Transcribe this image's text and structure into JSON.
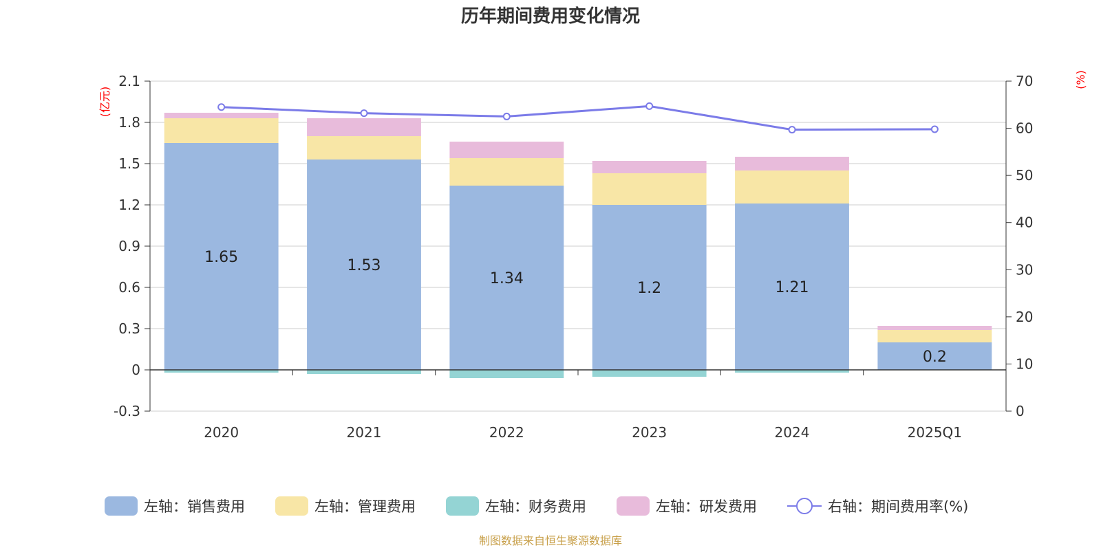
{
  "chart_data": {
    "type": "bar",
    "title": "历年期间费用变化情况",
    "left_unit": "(亿元)",
    "right_unit": "(%)",
    "categories": [
      "2020",
      "2021",
      "2022",
      "2023",
      "2024",
      "2025Q1"
    ],
    "left_axis": {
      "ylim": [
        -0.3,
        2.1
      ],
      "ticks": [
        "-0.3",
        "0",
        "0.3",
        "0.6",
        "0.9",
        "1.2",
        "1.5",
        "1.8",
        "2.1"
      ]
    },
    "right_axis": {
      "ylim": [
        0,
        70
      ],
      "ticks": [
        "0",
        "10",
        "20",
        "30",
        "40",
        "50",
        "60",
        "70"
      ]
    },
    "grid": true,
    "legend_position": "bottom",
    "stacked": true,
    "series": [
      {
        "name": "左轴：销售费用",
        "axis": "left",
        "type": "bar",
        "color": "#9bb8e0",
        "values": [
          1.65,
          1.53,
          1.34,
          1.2,
          1.21,
          0.2
        ],
        "labels": [
          "1.65",
          "1.53",
          "1.34",
          "1.2",
          "1.21",
          "0.2"
        ]
      },
      {
        "name": "左轴：管理费用",
        "axis": "left",
        "type": "bar",
        "color": "#f8e6a6",
        "values": [
          0.18,
          0.17,
          0.2,
          0.23,
          0.24,
          0.09
        ]
      },
      {
        "name": "左轴：财务费用",
        "axis": "left",
        "type": "bar",
        "color": "#94d4d4",
        "values": [
          -0.02,
          -0.03,
          -0.06,
          -0.05,
          -0.02,
          0.0
        ]
      },
      {
        "name": "左轴：研发费用",
        "axis": "left",
        "type": "bar",
        "color": "#e8bbdb",
        "values": [
          0.04,
          0.13,
          0.12,
          0.09,
          0.1,
          0.03
        ]
      },
      {
        "name": "右轴：期间费用率(%)",
        "axis": "right",
        "type": "line",
        "color": "#7b7be8",
        "values": [
          64.5,
          63.2,
          62.5,
          64.7,
          59.7,
          59.8
        ]
      }
    ],
    "source": "制图数据来自恒生聚源数据库"
  }
}
